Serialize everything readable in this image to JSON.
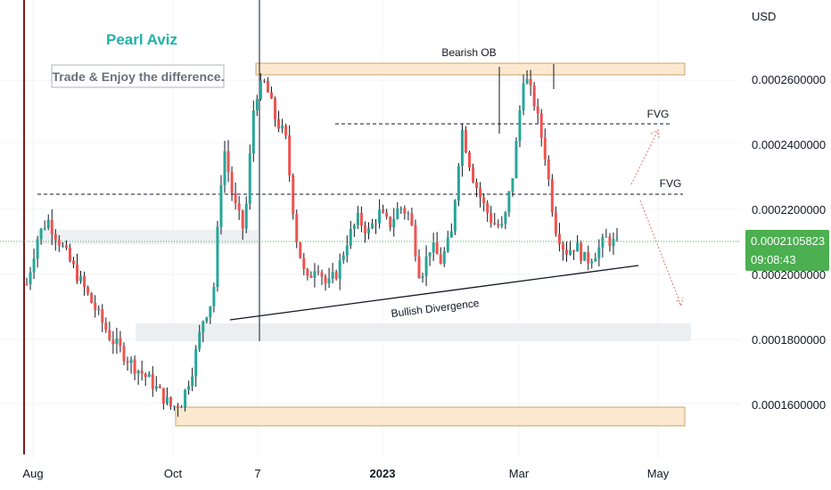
{
  "chart_data": {
    "type": "candlestick",
    "currency": "USD",
    "brand": "Pearl Aviz",
    "tagline": "Trade & Enjoy the difference.",
    "y_ticks": [
      {
        "label": "0.0002600000",
        "value": 0.00026
      },
      {
        "label": "0.0002400000",
        "value": 0.00024
      },
      {
        "label": "0.0002200000",
        "value": 0.00022
      },
      {
        "label": "0.0002000000",
        "value": 0.0002
      },
      {
        "label": "0.0001800000",
        "value": 0.00018
      },
      {
        "label": "0.0001600000",
        "value": 0.00016
      }
    ],
    "x_ticks": [
      {
        "label": "Aug",
        "bold": false
      },
      {
        "label": "Oct",
        "bold": false
      },
      {
        "label": "7",
        "bold": false
      },
      {
        "label": "2023",
        "bold": true
      },
      {
        "label": "Mar",
        "bold": false
      },
      {
        "label": "May",
        "bold": false
      }
    ],
    "current_price": {
      "value": "0.0002105823",
      "countdown": "09:08:43",
      "color": "#4caf50"
    },
    "annotations": {
      "bearish_ob": "Bearish OB",
      "fvg_upper": "FVG",
      "fvg_lower": "FVG",
      "bullish_divergence": "Bullish Divergence"
    },
    "colors": {
      "up": "#26a69a",
      "down": "#ef5350",
      "wick": "#131722",
      "ob_zone": "#fde9d0",
      "ob_border": "#c8a36e",
      "grey_zone": "#eceff2",
      "price_line": "#4caf50"
    },
    "price_path": [
      [
        0.000197,
        0.000196
      ],
      [
        0.000211,
        0.000203
      ],
      [
        0.000217,
        0.000215
      ],
      [
        0.000211,
        0.000212
      ],
      [
        0.000205,
        0.000208
      ],
      [
        0.000199,
        0.000201
      ],
      [
        0.000193,
        0.000197
      ],
      [
        0.000187,
        0.000191
      ],
      [
        0.000181,
        0.000185
      ],
      [
        0.000177,
        0.000178
      ],
      [
        0.000173,
        0.000174
      ],
      [
        0.00017,
        0.000171
      ],
      [
        0.000167,
        0.000168
      ],
      [
        0.000163,
        0.000165
      ],
      [
        0.000159,
        0.000161
      ],
      [
        0.000161,
        0.00016
      ],
      [
        0.000171,
        0.000162
      ],
      [
        0.000186,
        0.000175
      ],
      [
        0.000193,
        0.000188
      ],
      [
        0.00024,
        0.000197
      ],
      [
        0.000222,
        0.000236
      ],
      [
        0.000213,
        0.00022
      ],
      [
        0.000255,
        0.000213
      ],
      [
        0.000259,
        0.000255
      ],
      [
        0.000248,
        0.000253
      ],
      [
        0.000242,
        0.000246
      ],
      [
        0.000212,
        0.00024
      ],
      [
        0.000197,
        0.00021
      ],
      [
        0.000204,
        0.000198
      ],
      [
        0.000196,
        0.000203
      ],
      [
        0.000201,
        0.000195
      ],
      [
        0.000211,
        0.0002
      ],
      [
        0.000217,
        0.00021
      ],
      [
        0.000213,
        0.000215
      ],
      [
        0.000219,
        0.000212
      ],
      [
        0.000215,
        0.000218
      ],
      [
        0.000221,
        0.000214
      ],
      [
        0.000218,
        0.00022
      ],
      [
        0.000199,
        0.000216
      ],
      [
        0.000209,
        0.0002
      ],
      [
        0.000204,
        0.000207
      ],
      [
        0.000212,
        0.000203
      ],
      [
        0.000245,
        0.000213
      ],
      [
        0.000231,
        0.000243
      ],
      [
        0.000222,
        0.00023
      ],
      [
        0.000216,
        0.000221
      ],
      [
        0.000214,
        0.000217
      ],
      [
        0.000232,
        0.000214
      ],
      [
        0.000262,
        0.000232
      ],
      [
        0.000253,
        0.000258
      ],
      [
        0.000238,
        0.000251
      ],
      [
        0.000215,
        0.000236
      ],
      [
        0.000207,
        0.000213
      ],
      [
        0.000209,
        0.000206
      ],
      [
        0.000204,
        0.000208
      ],
      [
        0.000207,
        0.000203
      ],
      [
        0.000211,
        0.000206
      ],
      [
        0.000209,
        0.00021
      ]
    ]
  }
}
